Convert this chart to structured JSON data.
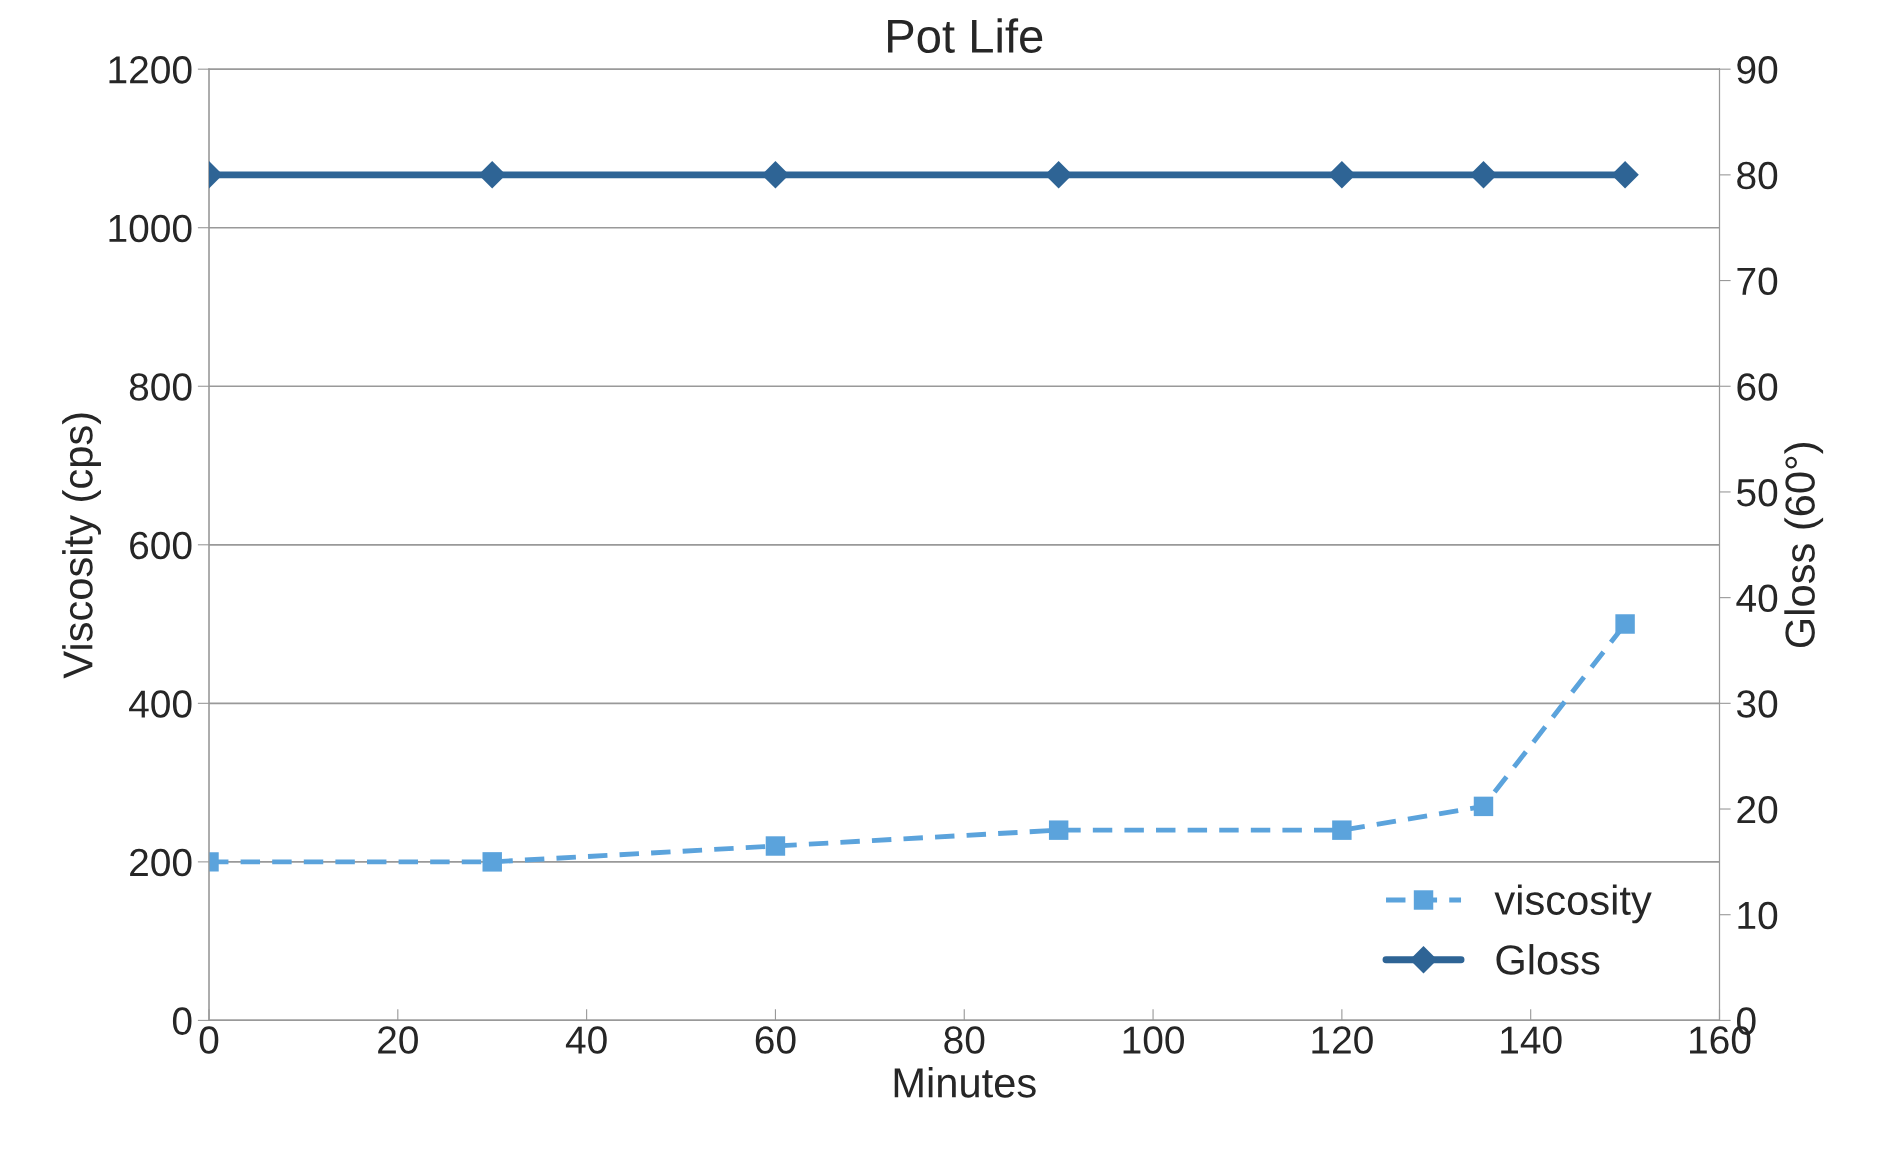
{
  "chart_data": {
    "type": "line",
    "title": "Pot Life",
    "xlabel": "Minutes",
    "ylabel": "Viscosity (cps)",
    "y2label": "Gloss (60°)",
    "x": [
      0,
      30,
      60,
      90,
      120,
      135,
      150
    ],
    "series": [
      {
        "name": "viscosity",
        "color": "#5ba3dc",
        "values": [
          200,
          200,
          220,
          240,
          240,
          270,
          500
        ],
        "marker": "square",
        "line_style": "dashed"
      },
      {
        "name": "Gloss",
        "color": "#2e6495",
        "values": [
          80,
          80,
          80,
          80,
          80,
          80,
          80
        ],
        "marker": "diamond",
        "line_style": "solid",
        "axis": "y2"
      }
    ],
    "xlim": [
      0,
      160
    ],
    "xticks": [
      0,
      20,
      40,
      60,
      80,
      100,
      120,
      140,
      160
    ],
    "ylim": [
      0,
      1200
    ],
    "yticks": [
      0,
      200,
      400,
      600,
      800,
      1000,
      1200
    ],
    "y2lim": [
      0,
      90
    ],
    "y2ticks": [
      0,
      10,
      20,
      30,
      40,
      50,
      60,
      70,
      80,
      90
    ],
    "grid": "y",
    "legend": "bottom right"
  }
}
